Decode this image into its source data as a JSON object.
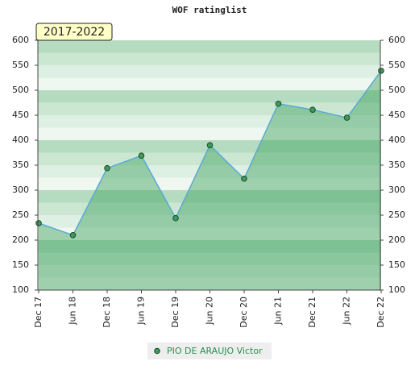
{
  "chart_data": {
    "type": "area",
    "title": "WOF ratinglist",
    "annotation": "2017-2022",
    "categories": [
      "Dec 17",
      "Jun 18",
      "Dec 18",
      "Jun 19",
      "Dec 19",
      "Jun 20",
      "Dec 20",
      "Jun 21",
      "Dec 21",
      "Jun 22",
      "Dec 22"
    ],
    "series": [
      {
        "name": "PIO DE ARAUJO Victor",
        "color": "#5aa9d6",
        "values": [
          234,
          210,
          344,
          369,
          244,
          390,
          323,
          473,
          461,
          445,
          539
        ]
      }
    ],
    "ylim": [
      100,
      600
    ],
    "yticks": [
      100,
      150,
      200,
      250,
      300,
      350,
      400,
      450,
      500,
      550,
      600
    ],
    "y2lim": [
      100,
      600
    ],
    "y2ticks": [
      100,
      150,
      200,
      250,
      300,
      350,
      400,
      450,
      500,
      550,
      600
    ]
  }
}
